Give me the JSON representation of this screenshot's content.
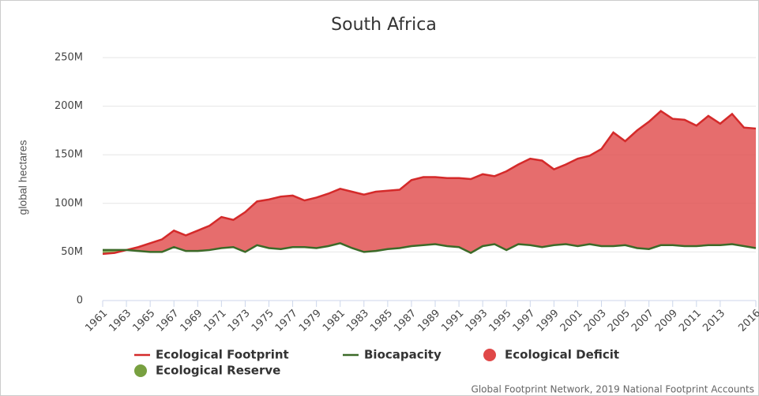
{
  "chart_data": {
    "type": "area",
    "title": "South Africa",
    "y_label": "global hectares",
    "source": "Global Footprint Network, 2019 National Footprint Accounts",
    "x": [
      1961,
      1962,
      1963,
      1964,
      1965,
      1966,
      1967,
      1968,
      1969,
      1970,
      1971,
      1972,
      1973,
      1974,
      1975,
      1976,
      1977,
      1978,
      1979,
      1980,
      1981,
      1982,
      1983,
      1984,
      1985,
      1986,
      1987,
      1988,
      1989,
      1990,
      1991,
      1992,
      1993,
      1994,
      1995,
      1996,
      1997,
      1998,
      1999,
      2000,
      2001,
      2002,
      2003,
      2004,
      2005,
      2006,
      2007,
      2008,
      2009,
      2010,
      2011,
      2012,
      2013,
      2014,
      2015,
      2016
    ],
    "xlim": [
      1961,
      2016
    ],
    "xticks": [
      1961,
      1963,
      1965,
      1967,
      1969,
      1971,
      1973,
      1975,
      1977,
      1979,
      1981,
      1983,
      1985,
      1987,
      1989,
      1991,
      1993,
      1995,
      1997,
      1999,
      2001,
      2003,
      2005,
      2007,
      2009,
      2011,
      2013,
      2016
    ],
    "ylim": [
      0,
      250000000
    ],
    "yticks": [
      0,
      {
        "value": 50000000,
        "label": "50M"
      },
      {
        "value": 100000000,
        "label": "100M"
      },
      {
        "value": 150000000,
        "label": "150M"
      },
      {
        "value": 200000000,
        "label": "200M"
      },
      {
        "value": 250000000,
        "label": "250M"
      }
    ],
    "grid": true,
    "series": [
      {
        "name": "Ecological Footprint",
        "color": "#d42a2a",
        "values": [
          48000000,
          49000000,
          52000000,
          55000000,
          59000000,
          63000000,
          72000000,
          67000000,
          72000000,
          77000000,
          86000000,
          83000000,
          91000000,
          102000000,
          104000000,
          107000000,
          108000000,
          103000000,
          106000000,
          110000000,
          115000000,
          112000000,
          109000000,
          112000000,
          113000000,
          114000000,
          124000000,
          127000000,
          127000000,
          126000000,
          126000000,
          125000000,
          130000000,
          128000000,
          133000000,
          140000000,
          146000000,
          144000000,
          135000000,
          140000000,
          146000000,
          149000000,
          156000000,
          173000000,
          164000000,
          175000000,
          184000000,
          195000000,
          187000000,
          186000000,
          180000000,
          190000000,
          182000000,
          192000000,
          178000000,
          177000000
        ]
      },
      {
        "name": "Biocapacity",
        "color": "#3c6a28",
        "values": [
          52000000,
          52000000,
          52000000,
          51000000,
          50000000,
          50000000,
          55000000,
          51000000,
          51000000,
          52000000,
          54000000,
          55000000,
          50000000,
          57000000,
          54000000,
          53000000,
          55000000,
          55000000,
          54000000,
          56000000,
          59000000,
          54000000,
          50000000,
          51000000,
          53000000,
          54000000,
          56000000,
          57000000,
          58000000,
          56000000,
          55000000,
          49000000,
          56000000,
          58000000,
          52000000,
          58000000,
          57000000,
          55000000,
          57000000,
          58000000,
          56000000,
          58000000,
          56000000,
          56000000,
          57000000,
          54000000,
          53000000,
          57000000,
          57000000,
          56000000,
          56000000,
          57000000,
          57000000,
          58000000,
          56000000,
          54000000
        ]
      }
    ],
    "areas": [
      {
        "name": "Ecological Deficit",
        "color": "#e04848"
      },
      {
        "name": "Ecological Reserve",
        "color": "#78a040"
      }
    ]
  }
}
